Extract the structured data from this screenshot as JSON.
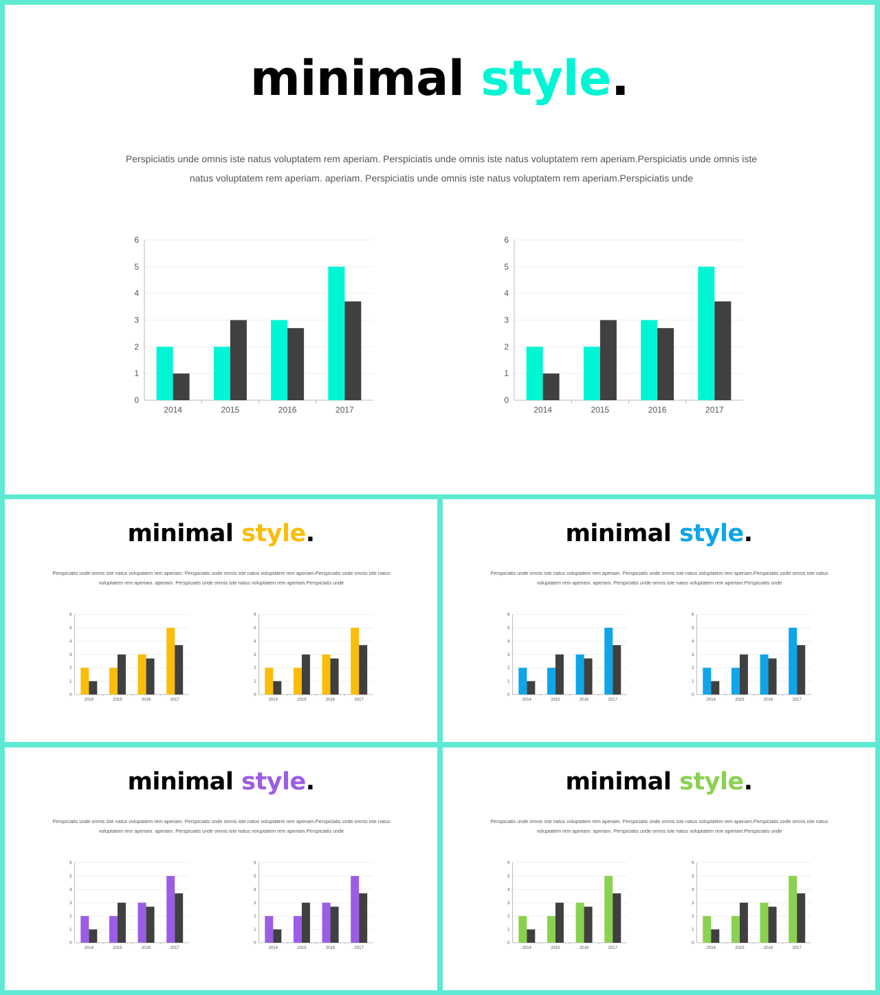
{
  "text": {
    "title_main": "minimal",
    "title_accent": "style",
    "title_period": ".",
    "paragraph": "Perspiciatis unde omnis  iste natus voluptatem  rem  aperiam.  Perspiciatis unde omnis  iste natus voluptatem  rem  aperiam.Perspiciatis unde omnis  iste natus voluptatem  rem  aperiam.  aperiam.  Perspiciatis unde omnis iste natus voluptatem  rem aperiam.Perspiciatis unde"
  },
  "colors": {
    "secondary_series": "#404040",
    "background_frame": "#5eead2"
  },
  "slides": [
    {
      "name": "teal",
      "accent": "#00f5d4"
    },
    {
      "name": "yellow",
      "accent": "#fbbd08"
    },
    {
      "name": "blue",
      "accent": "#0ea5e9"
    },
    {
      "name": "purple",
      "accent": "#9b5de5"
    },
    {
      "name": "green",
      "accent": "#8bd150"
    }
  ],
  "chart_data": {
    "type": "bar",
    "categories": [
      "2014",
      "2015",
      "2016",
      "2017"
    ],
    "series": [
      {
        "values": [
          2,
          2,
          3,
          5
        ]
      },
      {
        "values": [
          1,
          3,
          2.7,
          3.7
        ]
      }
    ],
    "ylim": [
      0,
      6
    ],
    "yticks": [
      "0",
      "1",
      "2",
      "3",
      "4",
      "5",
      "6"
    ],
    "grid": true,
    "legend": "none",
    "charts_per_slide": 2
  }
}
